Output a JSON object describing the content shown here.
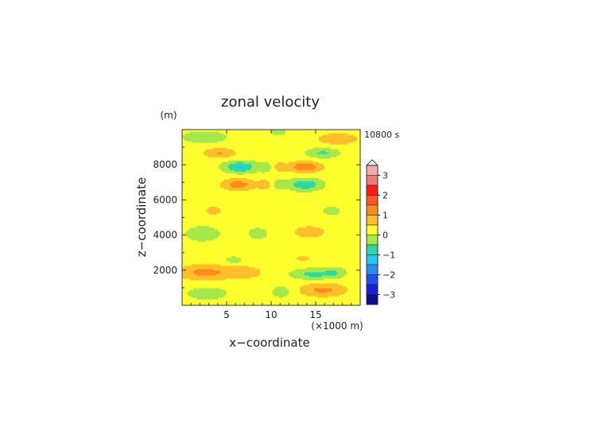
{
  "chart_data": {
    "type": "heatmap",
    "title": "zonal velocity",
    "xlabel": "x−coordinate",
    "ylabel": "z−coordinate",
    "y_unit": "(m)",
    "x_unit": "(×1000 m)",
    "time_label": "10800 s",
    "xlim": [
      0,
      20
    ],
    "ylim": [
      0,
      10000
    ],
    "x_ticks": [
      5,
      10,
      15
    ],
    "y_ticks": [
      2000,
      4000,
      6000,
      8000
    ],
    "colorbar": {
      "tick_values": [
        3,
        2,
        1,
        0,
        -1,
        -2,
        -3
      ],
      "tick_labels": [
        "3",
        "2",
        "1",
        "0",
        "−1",
        "−2",
        "−3"
      ],
      "range": [
        -3.5,
        3.5
      ],
      "extend": "max",
      "levels": [
        {
          "lo": 3.0,
          "hi": 3.5,
          "color": "#f7a8a8"
        },
        {
          "lo": 2.5,
          "hi": 3.0,
          "color": "#f27878"
        },
        {
          "lo": 2.0,
          "hi": 2.5,
          "color": "#ff1a1a"
        },
        {
          "lo": 1.5,
          "hi": 2.0,
          "color": "#f45a28"
        },
        {
          "lo": 1.0,
          "hi": 1.5,
          "color": "#ff8c1a"
        },
        {
          "lo": 0.5,
          "hi": 1.0,
          "color": "#ffbf2a"
        },
        {
          "lo": 0.0,
          "hi": 0.5,
          "color": "#ffff2f"
        },
        {
          "lo": -0.5,
          "hi": 0.0,
          "color": "#a6e84a"
        },
        {
          "lo": -1.0,
          "hi": -0.5,
          "color": "#29d9a8"
        },
        {
          "lo": -1.5,
          "hi": -1.0,
          "color": "#20c8f2"
        },
        {
          "lo": -2.0,
          "hi": -1.5,
          "color": "#2a8cf0"
        },
        {
          "lo": -2.5,
          "hi": -2.0,
          "color": "#1e50e6"
        },
        {
          "lo": -3.0,
          "hi": -2.5,
          "color": "#1c1ce0"
        },
        {
          "lo": -3.5,
          "hi": -3.0,
          "color": "#0f0f8c"
        }
      ]
    },
    "field_features": [
      {
        "x": 2.5,
        "z": 1900,
        "sx": 3.0,
        "sz": 420,
        "u": 0.95
      },
      {
        "x": 7.0,
        "z": 1900,
        "sx": 2.2,
        "sz": 380,
        "u": 0.55
      },
      {
        "x": 2.8,
        "z": 700,
        "sx": 2.2,
        "sz": 350,
        "u": -0.6
      },
      {
        "x": 5.8,
        "z": 2600,
        "sx": 1.0,
        "sz": 200,
        "u": -0.5
      },
      {
        "x": 3.5,
        "z": 5400,
        "sx": 0.9,
        "sz": 250,
        "u": 0.6
      },
      {
        "x": 2.3,
        "z": 4100,
        "sx": 2.0,
        "sz": 450,
        "u": -0.55
      },
      {
        "x": 8.5,
        "z": 4100,
        "sx": 1.3,
        "sz": 420,
        "u": -0.4
      },
      {
        "x": 6.3,
        "z": 6900,
        "sx": 1.8,
        "sz": 330,
        "u": 1.05
      },
      {
        "x": 6.5,
        "z": 7900,
        "sx": 1.8,
        "sz": 320,
        "u": -1.3
      },
      {
        "x": 4.2,
        "z": 8700,
        "sx": 1.8,
        "sz": 280,
        "u": 0.8
      },
      {
        "x": 2.5,
        "z": 9600,
        "sx": 2.5,
        "sz": 350,
        "u": -0.6
      },
      {
        "x": 9.4,
        "z": 7900,
        "sx": 0.9,
        "sz": 300,
        "u": -0.55
      },
      {
        "x": 9.4,
        "z": 6900,
        "sx": 0.9,
        "sz": 300,
        "u": 0.55
      },
      {
        "x": 14.8,
        "z": 1800,
        "sx": 2.4,
        "sz": 300,
        "u": -0.9
      },
      {
        "x": 17.2,
        "z": 1900,
        "sx": 1.2,
        "sz": 300,
        "u": -0.5
      },
      {
        "x": 15.8,
        "z": 900,
        "sx": 2.6,
        "sz": 380,
        "u": 0.9
      },
      {
        "x": 11.2,
        "z": 800,
        "sx": 1.2,
        "sz": 350,
        "u": -0.5
      },
      {
        "x": 13.6,
        "z": 2700,
        "sx": 1.0,
        "sz": 200,
        "u": 0.45
      },
      {
        "x": 14.3,
        "z": 4200,
        "sx": 2.4,
        "sz": 450,
        "u": 0.45
      },
      {
        "x": 16.8,
        "z": 5400,
        "sx": 0.9,
        "sz": 240,
        "u": -0.6
      },
      {
        "x": 13.8,
        "z": 6900,
        "sx": 1.8,
        "sz": 330,
        "u": -1.2
      },
      {
        "x": 13.8,
        "z": 7900,
        "sx": 1.8,
        "sz": 300,
        "u": 1.25
      },
      {
        "x": 15.8,
        "z": 8700,
        "sx": 1.8,
        "sz": 280,
        "u": -0.8
      },
      {
        "x": 17.5,
        "z": 9500,
        "sx": 2.5,
        "sz": 360,
        "u": 0.6
      },
      {
        "x": 10.8,
        "z": 7900,
        "sx": 0.9,
        "sz": 300,
        "u": 0.5
      },
      {
        "x": 10.8,
        "z": 6900,
        "sx": 0.9,
        "sz": 300,
        "u": -0.5
      },
      {
        "x": 10.8,
        "z": 9900,
        "sx": 0.9,
        "sz": 200,
        "u": -0.6
      }
    ]
  }
}
